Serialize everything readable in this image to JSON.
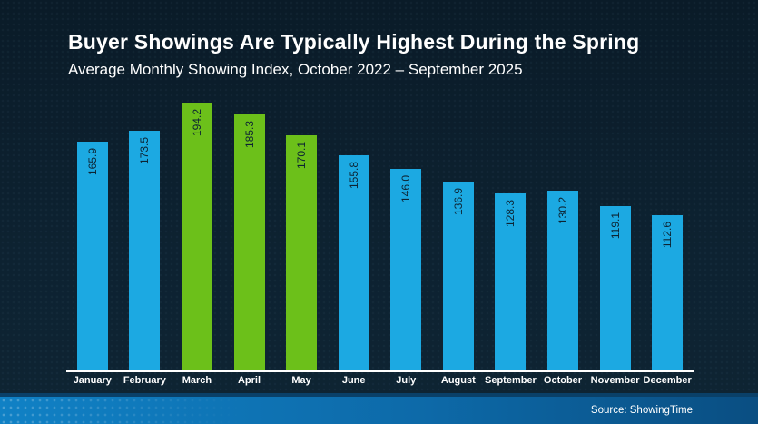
{
  "header": {
    "title": "Buyer Showings Are Typically Highest During the Spring",
    "subtitle": "Average Monthly Showing Index, October 2022 – September 2025"
  },
  "chart_data": {
    "type": "bar",
    "title": "Buyer Showings Are Typically Highest During the Spring",
    "subtitle": "Average Monthly Showing Index, October 2022 – September 2025",
    "categories": [
      "January",
      "February",
      "March",
      "April",
      "May",
      "June",
      "July",
      "August",
      "September",
      "October",
      "November",
      "December"
    ],
    "values": [
      165.9,
      173.5,
      194.2,
      185.3,
      170.1,
      155.8,
      146.0,
      136.9,
      128.3,
      130.2,
      119.1,
      112.6
    ],
    "value_labels": [
      "165.9",
      "173.5",
      "194.2",
      "185.3",
      "170.1",
      "155.8",
      "146.0",
      "136.9",
      "128.3",
      "130.2",
      "119.1",
      "112.6"
    ],
    "highlighted_categories": [
      "March",
      "April",
      "May"
    ],
    "xlabel": "",
    "ylabel": "",
    "ylim": [
      0,
      200
    ],
    "grid": false,
    "legend": "none",
    "value_label_rotation": 90,
    "colors": {
      "bar_default": "#1ca9e2",
      "bar_highlight": "#6cc01a",
      "value_label_text": "#0d2433",
      "axis_line": "#ffffff",
      "month_label_text": "#ffffff",
      "background": "#0d2231"
    }
  },
  "footer": {
    "source_label": "Source: ShowingTime"
  }
}
